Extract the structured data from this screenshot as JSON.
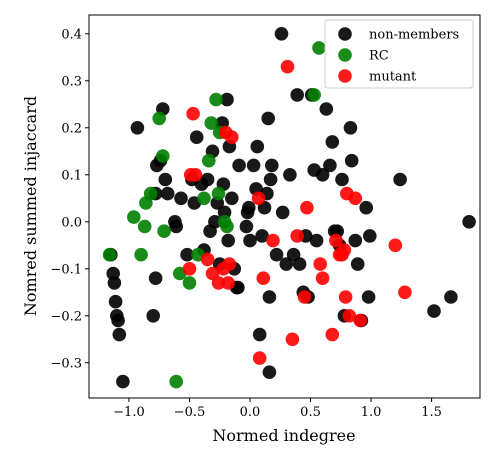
{
  "chart_data": {
    "type": "scatter",
    "xlabel": "Normed indegree",
    "ylabel": "Nomred summed injaccard",
    "xlim": [
      -1.33,
      1.9
    ],
    "ylim": [
      -0.375,
      0.44
    ],
    "xticks": [
      -1.0,
      -0.5,
      0.0,
      0.5,
      1.0,
      1.5
    ],
    "xtick_labels": [
      "−1.0",
      "−0.5",
      "0.0",
      "0.5",
      "1.0",
      "1.5"
    ],
    "yticks": [
      -0.3,
      -0.2,
      -0.1,
      0.0,
      0.1,
      0.2,
      0.3,
      0.4
    ],
    "ytick_labels": [
      "−0.3",
      "−0.2",
      "−0.1",
      "0.0",
      "0.1",
      "0.2",
      "0.3",
      "0.4"
    ],
    "grid": false,
    "legend_position": "top-right",
    "series": [
      {
        "name": "non-members",
        "color": "#000000",
        "points": [
          [
            -1.15,
            -0.07
          ],
          [
            -1.13,
            -0.11
          ],
          [
            -1.12,
            -0.13
          ],
          [
            -1.11,
            -0.17
          ],
          [
            -1.1,
            -0.2
          ],
          [
            -1.09,
            -0.21
          ],
          [
            -1.08,
            -0.24
          ],
          [
            -1.05,
            -0.34
          ],
          [
            -0.93,
            0.2
          ],
          [
            -0.8,
            -0.2
          ],
          [
            -0.78,
            -0.12
          ],
          [
            -0.78,
            0.06
          ],
          [
            -0.77,
            0.12
          ],
          [
            -0.74,
            0.13
          ],
          [
            -0.72,
            0.24
          ],
          [
            -0.7,
            0.09
          ],
          [
            -0.68,
            0.06
          ],
          [
            -0.62,
            0.0
          ],
          [
            -0.61,
            -0.01
          ],
          [
            -0.57,
            0.05
          ],
          [
            -0.52,
            -0.07
          ],
          [
            -0.48,
            0.09
          ],
          [
            -0.46,
            0.04
          ],
          [
            -0.44,
            0.18
          ],
          [
            -0.4,
            0.08
          ],
          [
            -0.38,
            -0.06
          ],
          [
            -0.35,
            0.09
          ],
          [
            -0.33,
            -0.02
          ],
          [
            -0.31,
            0.15
          ],
          [
            -0.29,
            0.0
          ],
          [
            -0.27,
            0.04
          ],
          [
            -0.25,
            -0.09
          ],
          [
            -0.23,
            0.21
          ],
          [
            -0.22,
            0.08
          ],
          [
            -0.21,
            0.02
          ],
          [
            -0.19,
            0.26
          ],
          [
            -0.18,
            -0.04
          ],
          [
            -0.17,
            0.16
          ],
          [
            -0.15,
            0.05
          ],
          [
            -0.13,
            -0.1
          ],
          [
            -0.11,
            -0.14
          ],
          [
            -0.1,
            -0.14
          ],
          [
            -0.09,
            0.12
          ],
          [
            -0.03,
            -0.01
          ],
          [
            -0.02,
            0.02
          ],
          [
            -0.01,
            0.03
          ],
          [
            0.0,
            -0.04
          ],
          [
            0.03,
            0.12
          ],
          [
            0.05,
            0.07
          ],
          [
            0.06,
            0.16
          ],
          [
            0.08,
            -0.24
          ],
          [
            0.1,
            -0.03
          ],
          [
            0.12,
            0.03
          ],
          [
            0.14,
            0.06
          ],
          [
            0.15,
            0.22
          ],
          [
            0.16,
            -0.32
          ],
          [
            0.16,
            -0.16
          ],
          [
            0.17,
            0.09
          ],
          [
            0.18,
            0.12
          ],
          [
            0.22,
            -0.07
          ],
          [
            0.26,
            0.4
          ],
          [
            0.27,
            0.02
          ],
          [
            0.3,
            -0.09
          ],
          [
            0.33,
            0.1
          ],
          [
            0.36,
            -0.07
          ],
          [
            0.39,
            0.27
          ],
          [
            0.41,
            -0.09
          ],
          [
            0.44,
            -0.15
          ],
          [
            0.46,
            -0.03
          ],
          [
            0.48,
            -0.16
          ],
          [
            0.51,
            0.27
          ],
          [
            0.53,
            0.11
          ],
          [
            0.55,
            -0.04
          ],
          [
            0.6,
            0.1
          ],
          [
            0.63,
            0.24
          ],
          [
            0.66,
            0.12
          ],
          [
            0.68,
            0.17
          ],
          [
            0.7,
            -0.02
          ],
          [
            0.72,
            -0.02
          ],
          [
            0.74,
            -0.05
          ],
          [
            0.76,
            0.09
          ],
          [
            0.78,
            -0.2
          ],
          [
            0.83,
            0.2
          ],
          [
            0.84,
            0.13
          ],
          [
            0.87,
            -0.04
          ],
          [
            0.89,
            -0.09
          ],
          [
            0.92,
            -0.21
          ],
          [
            0.96,
            0.03
          ],
          [
            0.98,
            -0.16
          ],
          [
            0.99,
            -0.03
          ],
          [
            1.24,
            0.09
          ],
          [
            1.52,
            -0.19
          ],
          [
            1.66,
            -0.16
          ],
          [
            1.81,
            0.0
          ]
        ]
      },
      {
        "name": "RC",
        "color": "#008000",
        "points": [
          [
            -1.16,
            -0.07
          ],
          [
            -0.96,
            0.01
          ],
          [
            -0.9,
            -0.07
          ],
          [
            -0.87,
            -0.01
          ],
          [
            -0.86,
            0.04
          ],
          [
            -0.82,
            0.06
          ],
          [
            -0.75,
            0.22
          ],
          [
            -0.72,
            0.14
          ],
          [
            -0.71,
            -0.02
          ],
          [
            -0.61,
            -0.34
          ],
          [
            -0.58,
            -0.11
          ],
          [
            -0.5,
            -0.13
          ],
          [
            -0.43,
            -0.07
          ],
          [
            -0.38,
            0.05
          ],
          [
            -0.34,
            0.13
          ],
          [
            -0.32,
            0.21
          ],
          [
            -0.28,
            0.26
          ],
          [
            -0.26,
            0.06
          ],
          [
            -0.25,
            0.19
          ],
          [
            -0.21,
            0.0
          ],
          [
            -0.19,
            -0.01
          ],
          [
            0.53,
            0.27
          ],
          [
            0.57,
            0.37
          ]
        ]
      },
      {
        "name": "mutant",
        "color": "#ff0000",
        "points": [
          [
            -0.5,
            -0.1
          ],
          [
            -0.49,
            0.1
          ],
          [
            -0.47,
            0.23
          ],
          [
            -0.45,
            0.1
          ],
          [
            -0.35,
            -0.08
          ],
          [
            -0.31,
            -0.11
          ],
          [
            -0.26,
            -0.13
          ],
          [
            -0.22,
            -0.1
          ],
          [
            -0.2,
            0.19
          ],
          [
            -0.18,
            -0.13
          ],
          [
            -0.17,
            -0.09
          ],
          [
            -0.15,
            0.18
          ],
          [
            0.07,
            0.05
          ],
          [
            0.08,
            -0.29
          ],
          [
            0.11,
            -0.12
          ],
          [
            0.19,
            -0.04
          ],
          [
            0.31,
            0.33
          ],
          [
            0.35,
            -0.25
          ],
          [
            0.39,
            -0.03
          ],
          [
            0.45,
            -0.16
          ],
          [
            0.47,
            0.03
          ],
          [
            0.58,
            -0.09
          ],
          [
            0.6,
            -0.12
          ],
          [
            0.68,
            -0.24
          ],
          [
            0.71,
            -0.04
          ],
          [
            0.74,
            -0.07
          ],
          [
            0.76,
            -0.07
          ],
          [
            0.78,
            -0.06
          ],
          [
            0.79,
            -0.16
          ],
          [
            0.8,
            0.06
          ],
          [
            0.82,
            -0.2
          ],
          [
            0.87,
            0.05
          ],
          [
            0.91,
            -0.21
          ],
          [
            1.2,
            -0.05
          ],
          [
            1.28,
            -0.15
          ]
        ]
      }
    ]
  }
}
